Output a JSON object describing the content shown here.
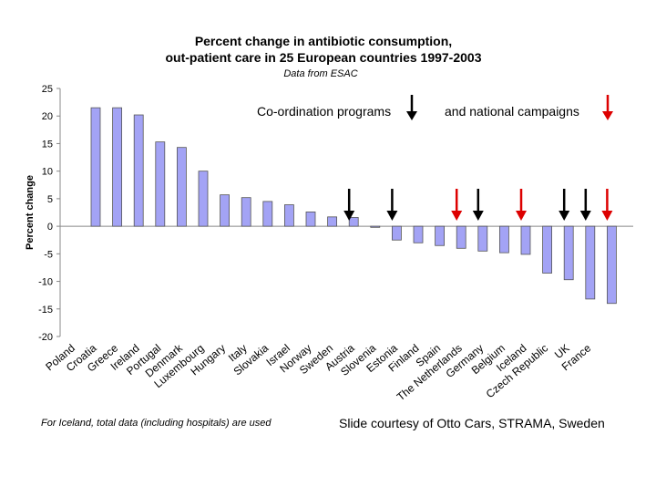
{
  "chart_data": {
    "type": "bar",
    "title": "Percent change in antibiotic consumption,",
    "subtitle": "out-patient care in 25 European countries 1997-2003",
    "source": "Data from ESAC",
    "y_label": "Percent change",
    "annotation_left": "Co-ordination programs",
    "annotation_right": "and   national campaigns",
    "footnote": "For Iceland, total data (including hospitals) are used",
    "credit": "Slide courtesy of Otto Cars, STRAMA, Sweden",
    "categories": [
      "Poland",
      "Croatia",
      "Greece",
      "Ireland",
      "Portugal",
      "Denmark",
      "Luxembourg",
      "Hungary",
      "Italy",
      "Slovakia",
      "Israel",
      "Norway",
      "Sweden",
      "Austria",
      "Slovenia",
      "Estonia",
      "Finland",
      "Spain",
      "The Netherlands",
      "Germany",
      "Belgium",
      "Iceland",
      "Czech Republic",
      "UK",
      "France"
    ],
    "values": [
      21.5,
      21.5,
      20.2,
      15.3,
      14.3,
      10,
      5.7,
      5.2,
      4.5,
      3.9,
      2.6,
      1.7,
      1.6,
      -0.2,
      -2.5,
      -3,
      -3.5,
      -4,
      -4.5,
      -4.8,
      -5.1,
      -8.5,
      -9.7,
      -13.2,
      -14
    ],
    "color": "#a3a3f5",
    "ylim": [
      -20,
      25
    ],
    "yticks": [
      -20,
      -15,
      -10,
      -5,
      0,
      5,
      10,
      15,
      20,
      25
    ]
  }
}
